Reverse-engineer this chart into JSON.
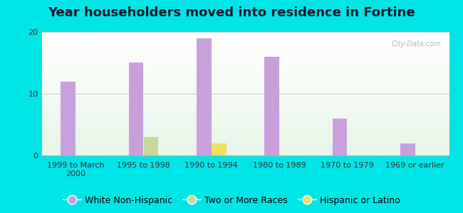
{
  "title": "Year householders moved into residence in Fortine",
  "categories": [
    "1999 to March\n2000",
    "1995 to 1998",
    "1990 to 1994",
    "1980 to 1989",
    "1970 to 1979",
    "1969 or earlier"
  ],
  "series": {
    "White Non-Hispanic": [
      12,
      15,
      19,
      16,
      6,
      2
    ],
    "Two or More Races": [
      0,
      3,
      0,
      0,
      0,
      0
    ],
    "Hispanic or Latino": [
      0,
      0,
      2,
      0,
      0,
      0
    ]
  },
  "colors": {
    "White Non-Hispanic": "#c9a0dc",
    "Two or More Races": "#c8d89a",
    "Hispanic or Latino": "#f0e060"
  },
  "ylim": [
    0,
    20
  ],
  "yticks": [
    0,
    10,
    20
  ],
  "bar_width": 0.22,
  "background_outer": "#00e5e5",
  "background_inner": "#eaf5ea",
  "grid_color": "#cccccc",
  "title_fontsize": 13,
  "tick_fontsize": 8,
  "legend_fontsize": 9,
  "watermark": "City-Data.com"
}
